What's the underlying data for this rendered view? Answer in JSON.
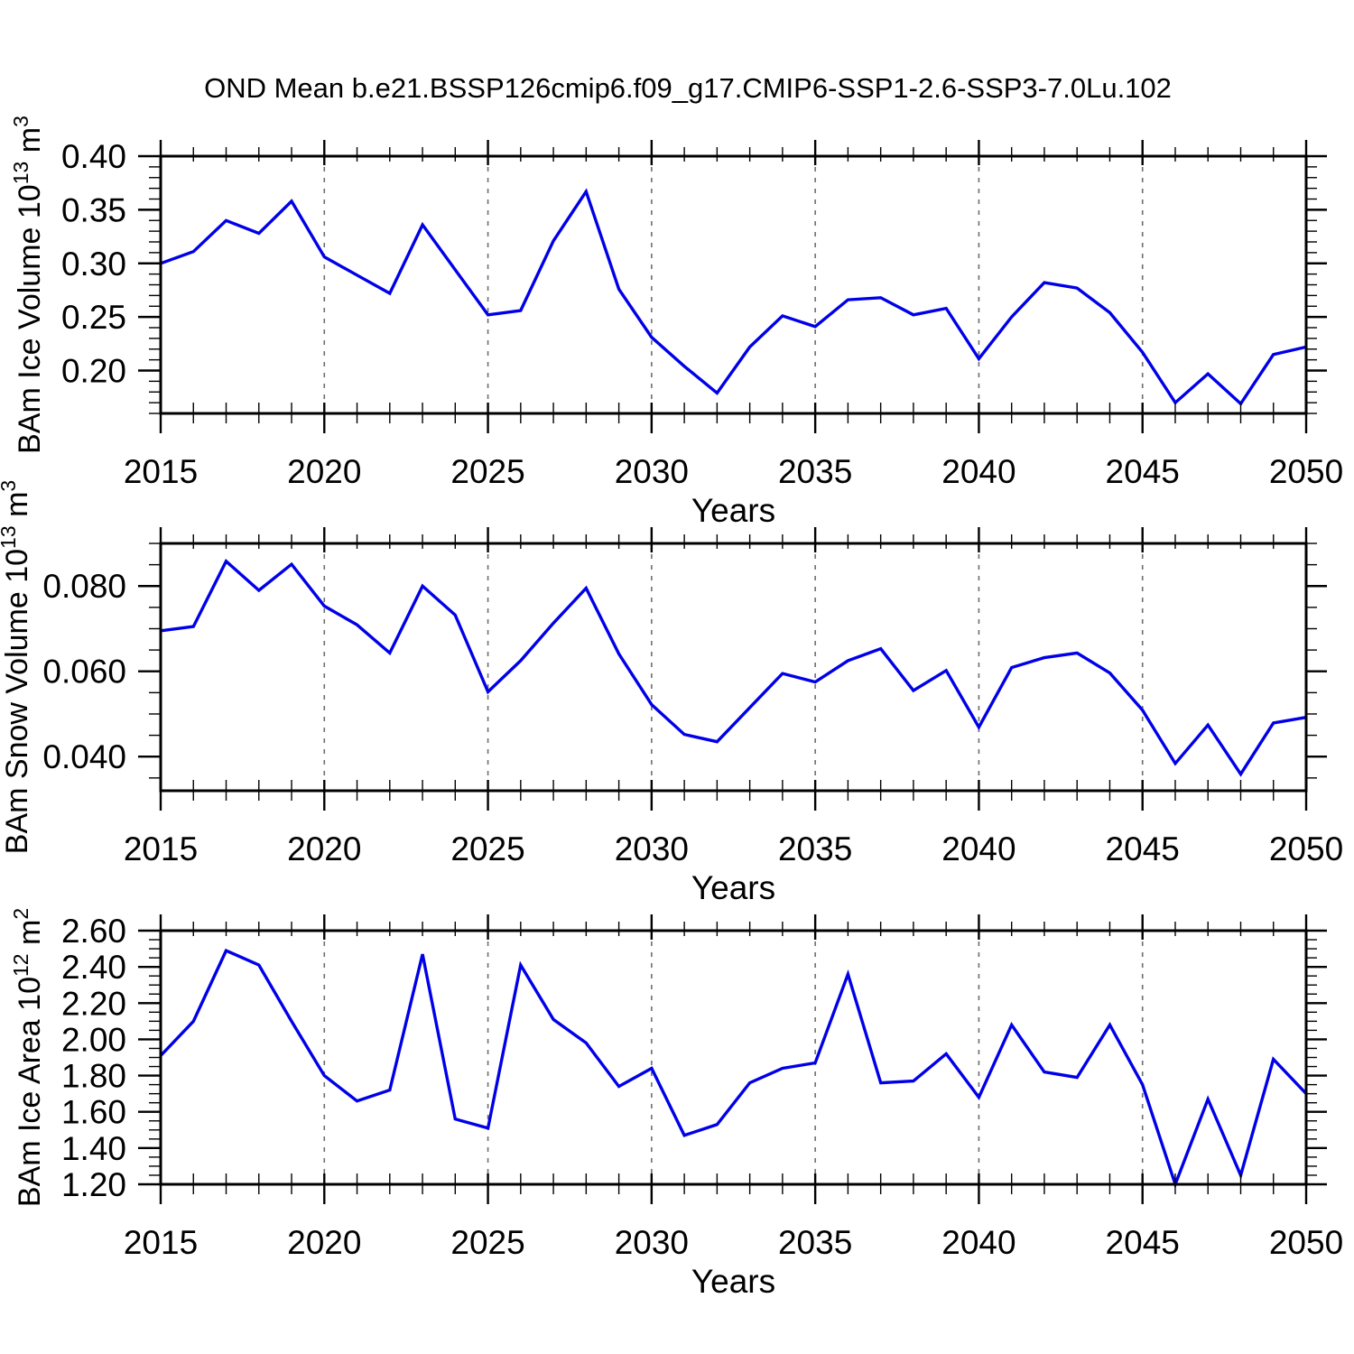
{
  "title": "OND Mean b.e21.BSSP126cmip6.f09_g17.CMIP6-SSP1-2.6-SSP3-7.0Lu.102",
  "colors": {
    "line": "#0000e8",
    "grid": "#6e6e6e",
    "axis": "#000000",
    "background": "#ffffff"
  },
  "chart_data": {
    "type": "line",
    "series_count": 3,
    "grid": "vertical-dashed-at-major-xticks",
    "legend": "none",
    "years": [
      2015,
      2016,
      2017,
      2018,
      2019,
      2020,
      2021,
      2022,
      2023,
      2024,
      2025,
      2026,
      2027,
      2028,
      2029,
      2030,
      2031,
      2032,
      2033,
      2034,
      2035,
      2036,
      2037,
      2038,
      2039,
      2040,
      2041,
      2042,
      2043,
      2044,
      2045,
      2046,
      2047,
      2048,
      2049,
      2050
    ],
    "xlim": [
      2015,
      2050
    ],
    "xticks": [
      2015,
      2020,
      2025,
      2030,
      2035,
      2040,
      2045,
      2050
    ],
    "xtick_labels": [
      "2015",
      "2020",
      "2025",
      "2030",
      "2035",
      "2040",
      "2045",
      "2050"
    ],
    "x_minor_step": 1,
    "panels": [
      {
        "id": "ice-volume",
        "ylabel_parts": [
          "BAm Ice Volume 10",
          "13",
          " m",
          "3"
        ],
        "xlabel": "Years",
        "ylim": [
          0.16,
          0.4
        ],
        "yticks": [
          0.2,
          0.25,
          0.3,
          0.35,
          0.4
        ],
        "ytick_labels": [
          "0.20",
          "0.25",
          "0.30",
          "0.35",
          "0.40"
        ],
        "y_minor_step": 0.01,
        "values": [
          0.3,
          0.311,
          0.34,
          0.328,
          0.358,
          0.306,
          0.289,
          0.272,
          0.336,
          0.294,
          0.252,
          0.256,
          0.321,
          0.367,
          0.276,
          0.231,
          0.204,
          0.179,
          0.222,
          0.251,
          0.241,
          0.266,
          0.268,
          0.252,
          0.258,
          0.211,
          0.25,
          0.282,
          0.277,
          0.254,
          0.217,
          0.17,
          0.197,
          0.169,
          0.215,
          0.222
        ]
      },
      {
        "id": "snow-volume",
        "ylabel_parts": [
          "BAm Snow Volume 10",
          "13",
          " m",
          "3"
        ],
        "xlabel": "Years",
        "ylim": [
          0.032,
          0.09
        ],
        "yticks": [
          0.04,
          0.06,
          0.08
        ],
        "ytick_labels": [
          "0.040",
          "0.060",
          "0.080"
        ],
        "y_minor_step": 0.005,
        "values": [
          0.0695,
          0.0705,
          0.0858,
          0.079,
          0.0851,
          0.0753,
          0.0709,
          0.0643,
          0.08,
          0.0732,
          0.0552,
          0.0625,
          0.0713,
          0.0795,
          0.0641,
          0.0522,
          0.0452,
          0.0435,
          0.0515,
          0.0595,
          0.0575,
          0.0625,
          0.0653,
          0.0555,
          0.0602,
          0.0469,
          0.0609,
          0.0632,
          0.0643,
          0.0596,
          0.0509,
          0.0384,
          0.0474,
          0.0359,
          0.0479,
          0.0492
        ]
      },
      {
        "id": "ice-area",
        "ylabel_parts": [
          "BAm Ice Area 10",
          "12",
          " m",
          "2"
        ],
        "xlabel": "Years",
        "ylim": [
          1.2,
          2.6
        ],
        "yticks": [
          1.2,
          1.4,
          1.6,
          1.8,
          2.0,
          2.2,
          2.4,
          2.6
        ],
        "ytick_labels": [
          "1.20",
          "1.40",
          "1.60",
          "1.80",
          "2.00",
          "2.20",
          "2.40",
          "2.60"
        ],
        "y_minor_step": 0.05,
        "values": [
          1.91,
          2.1,
          2.49,
          2.41,
          2.1,
          1.8,
          1.66,
          1.72,
          2.47,
          1.56,
          1.51,
          2.41,
          2.11,
          1.98,
          1.74,
          1.84,
          1.47,
          1.53,
          1.76,
          1.84,
          1.87,
          2.36,
          1.76,
          1.77,
          1.92,
          1.68,
          2.08,
          1.82,
          1.79,
          2.08,
          1.75,
          1.2,
          1.67,
          1.25,
          1.89,
          1.7
        ]
      }
    ]
  }
}
